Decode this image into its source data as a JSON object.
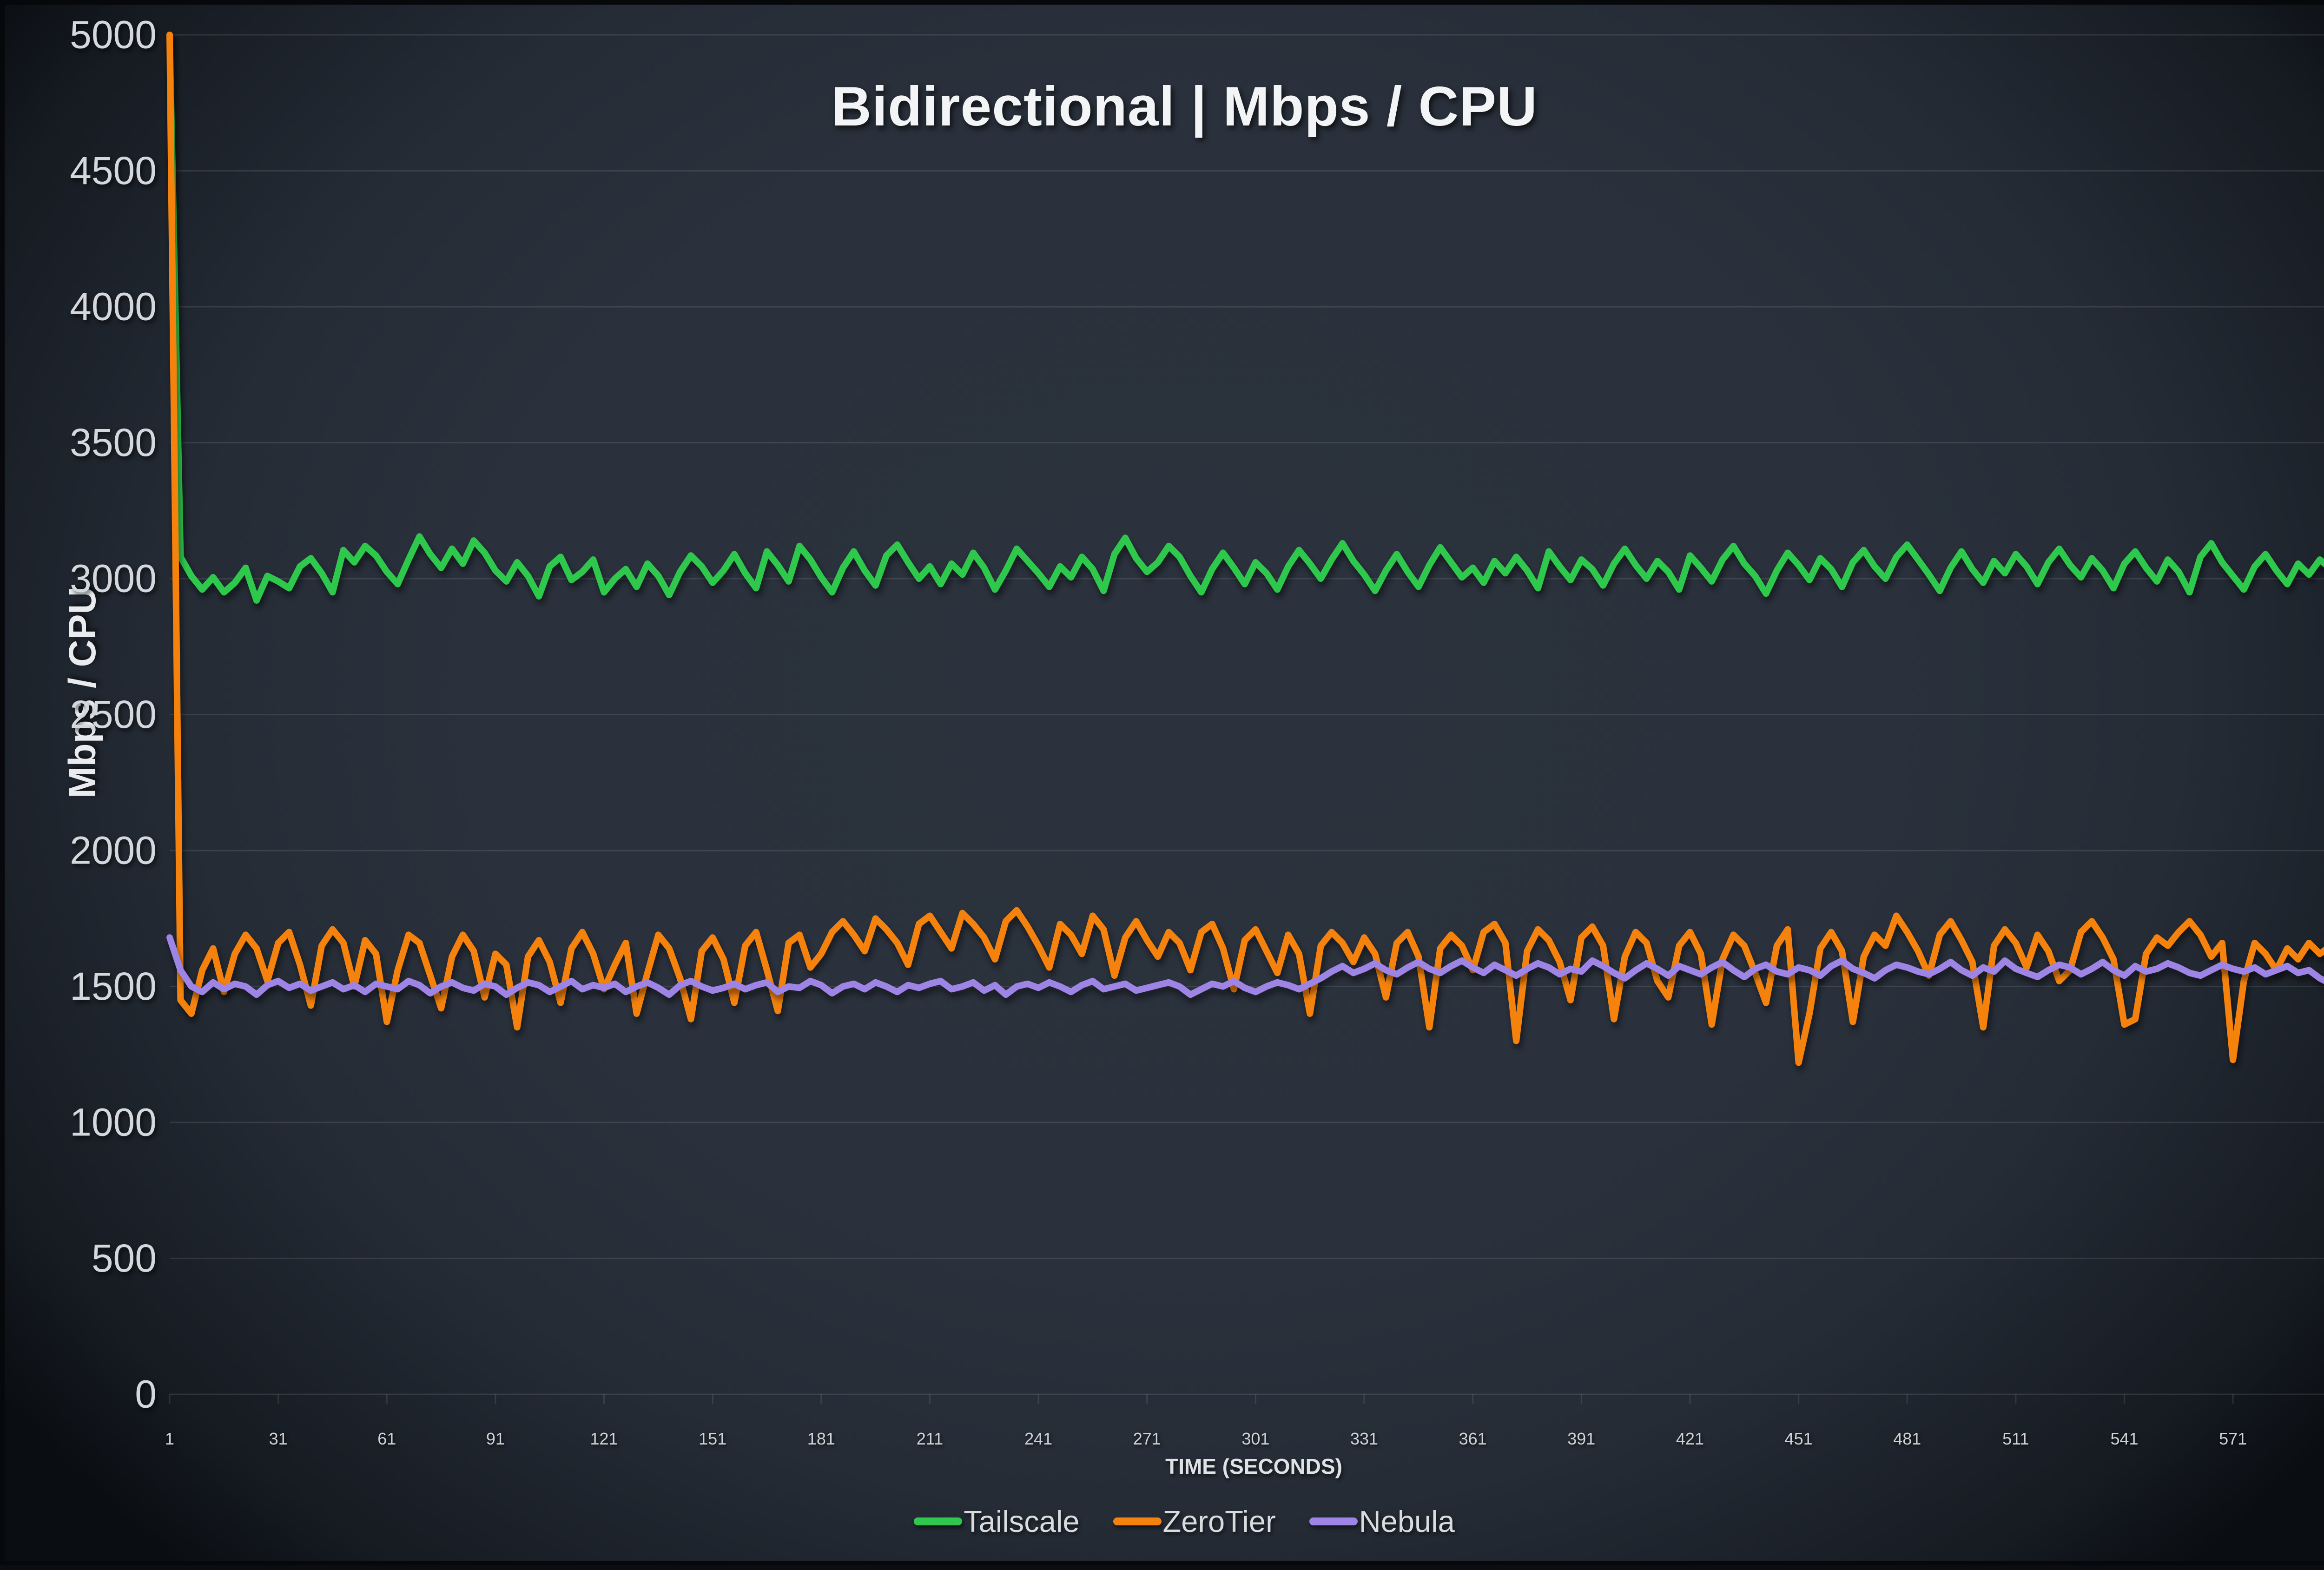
{
  "chart_data": {
    "type": "line",
    "title": "Bidirectional | Mbps / CPU",
    "xlabel": "TIME (SECONDS)",
    "ylabel": "Mbps / CPU",
    "xlim": [
      1,
      600
    ],
    "ylim": [
      0,
      5000
    ],
    "x_ticks": [
      1,
      31,
      61,
      91,
      121,
      151,
      181,
      211,
      241,
      271,
      301,
      331,
      361,
      391,
      421,
      451,
      481,
      511,
      541,
      571
    ],
    "y_ticks": [
      0,
      500,
      1000,
      1500,
      2000,
      2500,
      3000,
      3500,
      4000,
      4500,
      5000
    ],
    "grid": "horizontal",
    "legend_position": "bottom",
    "grid_color": "rgba(255,255,255,0.10)",
    "tick_label_color": "#d4d7db",
    "background_center": "#2a313c",
    "background_edge": "#0a0d11",
    "x": {
      "start": 1,
      "step": 3,
      "count": 200
    },
    "series": [
      {
        "name": "Tailscale",
        "color": "#2ec84e",
        "values": [
          5000,
          3080,
          3010,
          2960,
          3005,
          2950,
          2985,
          3040,
          2920,
          3010,
          2990,
          2965,
          3045,
          3075,
          3020,
          2950,
          3105,
          3060,
          3120,
          3085,
          3025,
          2980,
          3070,
          3155,
          3090,
          3040,
          3110,
          3055,
          3140,
          3095,
          3030,
          2990,
          3060,
          3010,
          2935,
          3045,
          3080,
          2995,
          3025,
          3070,
          2950,
          3000,
          3035,
          2970,
          3055,
          3010,
          2940,
          3025,
          3085,
          3045,
          2985,
          3030,
          3090,
          3020,
          2965,
          3100,
          3050,
          2990,
          3120,
          3070,
          3005,
          2950,
          3040,
          3100,
          3030,
          2975,
          3085,
          3125,
          3060,
          3000,
          3045,
          2980,
          3055,
          3015,
          3095,
          3040,
          2960,
          3030,
          3110,
          3065,
          3020,
          2970,
          3045,
          3005,
          3080,
          3035,
          2955,
          3090,
          3150,
          3075,
          3025,
          3060,
          3120,
          3080,
          3010,
          2950,
          3035,
          3095,
          3040,
          2980,
          3060,
          3020,
          2960,
          3045,
          3105,
          3055,
          3000,
          3070,
          3130,
          3065,
          3015,
          2955,
          3030,
          3090,
          3025,
          2970,
          3050,
          3115,
          3060,
          3005,
          3040,
          2985,
          3065,
          3020,
          3080,
          3030,
          2965,
          3100,
          3045,
          2995,
          3070,
          3035,
          2975,
          3055,
          3110,
          3050,
          3000,
          3065,
          3025,
          2960,
          3085,
          3040,
          2990,
          3070,
          3120,
          3055,
          3010,
          2945,
          3030,
          3095,
          3050,
          2995,
          3075,
          3035,
          2970,
          3060,
          3105,
          3045,
          3000,
          3080,
          3125,
          3070,
          3015,
          2955,
          3040,
          3100,
          3035,
          2985,
          3065,
          3020,
          3090,
          3045,
          2980,
          3060,
          3110,
          3050,
          3005,
          3075,
          3030,
          2965,
          3055,
          3100,
          3040,
          2990,
          3070,
          3025,
          2950,
          3080,
          3130,
          3060,
          3010,
          2960,
          3045,
          3090,
          3030,
          2980,
          3055,
          3015,
          3070,
          3035
        ]
      },
      {
        "name": "ZeroTier",
        "color": "#f5820e",
        "values": [
          5000,
          1450,
          1400,
          1560,
          1640,
          1480,
          1620,
          1690,
          1640,
          1520,
          1660,
          1700,
          1580,
          1430,
          1650,
          1710,
          1660,
          1500,
          1670,
          1620,
          1370,
          1560,
          1690,
          1660,
          1540,
          1420,
          1610,
          1690,
          1630,
          1460,
          1620,
          1580,
          1350,
          1610,
          1670,
          1590,
          1440,
          1640,
          1700,
          1620,
          1490,
          1580,
          1660,
          1400,
          1550,
          1690,
          1640,
          1530,
          1380,
          1630,
          1680,
          1600,
          1440,
          1650,
          1700,
          1560,
          1410,
          1660,
          1690,
          1570,
          1620,
          1700,
          1740,
          1690,
          1630,
          1750,
          1710,
          1660,
          1580,
          1730,
          1760,
          1700,
          1640,
          1770,
          1730,
          1680,
          1600,
          1740,
          1780,
          1720,
          1650,
          1570,
          1730,
          1690,
          1620,
          1760,
          1710,
          1540,
          1680,
          1740,
          1670,
          1610,
          1700,
          1660,
          1560,
          1700,
          1730,
          1640,
          1490,
          1670,
          1710,
          1630,
          1550,
          1690,
          1620,
          1400,
          1650,
          1700,
          1660,
          1590,
          1680,
          1620,
          1460,
          1660,
          1700,
          1610,
          1350,
          1640,
          1690,
          1650,
          1560,
          1700,
          1730,
          1660,
          1300,
          1630,
          1710,
          1670,
          1590,
          1450,
          1680,
          1720,
          1650,
          1380,
          1610,
          1700,
          1660,
          1520,
          1460,
          1650,
          1700,
          1620,
          1360,
          1600,
          1690,
          1650,
          1550,
          1440,
          1650,
          1710,
          1220,
          1400,
          1640,
          1700,
          1630,
          1370,
          1610,
          1690,
          1650,
          1760,
          1700,
          1630,
          1540,
          1690,
          1740,
          1670,
          1590,
          1350,
          1650,
          1710,
          1660,
          1570,
          1690,
          1630,
          1520,
          1560,
          1700,
          1740,
          1680,
          1600,
          1360,
          1380,
          1620,
          1680,
          1650,
          1700,
          1740,
          1690,
          1610,
          1660,
          1230,
          1520,
          1660,
          1620,
          1560,
          1640,
          1600,
          1660,
          1620,
          1650
        ]
      },
      {
        "name": "Nebula",
        "color": "#9e84e4",
        "values": [
          1680,
          1560,
          1500,
          1480,
          1515,
          1490,
          1510,
          1500,
          1470,
          1505,
          1520,
          1495,
          1510,
          1485,
          1500,
          1515,
          1490,
          1505,
          1480,
          1510,
          1500,
          1490,
          1520,
          1505,
          1475,
          1500,
          1515,
          1495,
          1485,
          1510,
          1500,
          1470,
          1495,
          1515,
          1505,
          1480,
          1500,
          1520,
          1490,
          1505,
          1495,
          1510,
          1480,
          1500,
          1515,
          1495,
          1470,
          1505,
          1520,
          1500,
          1485,
          1495,
          1510,
          1490,
          1505,
          1515,
          1480,
          1500,
          1495,
          1520,
          1505,
          1475,
          1500,
          1510,
          1490,
          1515,
          1500,
          1480,
          1505,
          1495,
          1510,
          1520,
          1490,
          1500,
          1515,
          1485,
          1505,
          1470,
          1500,
          1510,
          1495,
          1515,
          1500,
          1480,
          1505,
          1520,
          1490,
          1500,
          1510,
          1485,
          1495,
          1505,
          1515,
          1500,
          1470,
          1490,
          1510,
          1500,
          1520,
          1495,
          1480,
          1500,
          1515,
          1505,
          1490,
          1510,
          1530,
          1555,
          1575,
          1550,
          1565,
          1585,
          1560,
          1545,
          1570,
          1590,
          1565,
          1550,
          1575,
          1595,
          1570,
          1550,
          1580,
          1560,
          1540,
          1565,
          1585,
          1570,
          1545,
          1565,
          1555,
          1595,
          1575,
          1550,
          1530,
          1560,
          1585,
          1565,
          1540,
          1575,
          1560,
          1545,
          1570,
          1590,
          1560,
          1535,
          1565,
          1580,
          1555,
          1545,
          1570,
          1560,
          1540,
          1575,
          1595,
          1565,
          1550,
          1530,
          1560,
          1580,
          1570,
          1555,
          1545,
          1565,
          1590,
          1560,
          1540,
          1570,
          1555,
          1595,
          1565,
          1550,
          1535,
          1560,
          1580,
          1570,
          1545,
          1565,
          1590,
          1560,
          1540,
          1575,
          1555,
          1565,
          1585,
          1570,
          1550,
          1540,
          1560,
          1580,
          1565,
          1555,
          1570,
          1545,
          1560,
          1575,
          1550,
          1560,
          1530,
          1510
        ]
      }
    ]
  }
}
